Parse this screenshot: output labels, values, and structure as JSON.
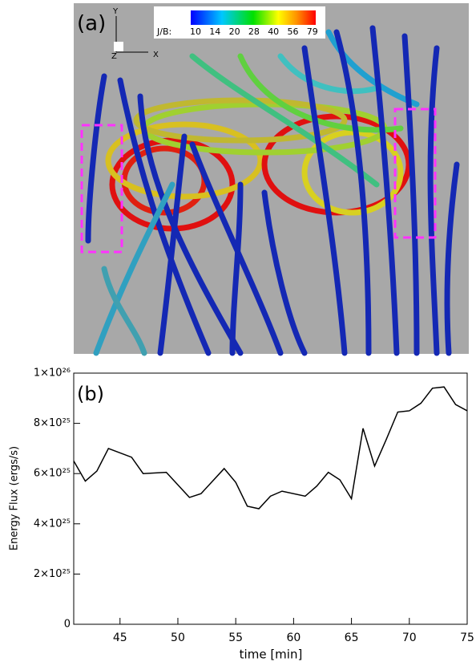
{
  "panel_a": {
    "label": "(a)",
    "colorbar": {
      "title": "J/B:",
      "ticks": [
        10,
        14,
        20,
        28,
        40,
        56,
        79
      ]
    },
    "axes": {
      "y": "Y",
      "z": "Z",
      "x": "X"
    }
  },
  "chart_data": {
    "type": "line",
    "label": "(b)",
    "xlabel": "time [min]",
    "ylabel": "Energy Flux (ergs/s)",
    "x": [
      41,
      42,
      43,
      44,
      46,
      47,
      49,
      51,
      52,
      54,
      55,
      56,
      57,
      58,
      59,
      61,
      62,
      63,
      64,
      65,
      66,
      67,
      68,
      69,
      70,
      71,
      72,
      73,
      74,
      75
    ],
    "values": [
      6.5e+25,
      5.7e+25,
      6.1e+25,
      7e+25,
      6.65e+25,
      6e+25,
      6.05e+25,
      5.05e+25,
      5.2e+25,
      6.2e+25,
      5.65e+25,
      4.7e+25,
      4.6e+25,
      5.1e+25,
      5.3e+25,
      5.1e+25,
      5.5e+25,
      6.05e+25,
      5.75e+25,
      5e+25,
      7.8e+25,
      6.3e+25,
      7.35e+25,
      8.45e+25,
      8.5e+25,
      8.8e+25,
      9.4e+25,
      9.45e+25,
      8.75e+25,
      8.5e+25
    ],
    "color": "#000000",
    "xlim": [
      41,
      75
    ],
    "ylim": [
      0,
      1e+26
    ],
    "xticks": [
      45,
      50,
      55,
      60,
      65,
      70,
      75
    ],
    "yticks": [
      0,
      {
        "value": 2e+25,
        "label": "2×10²⁵"
      },
      {
        "value": 4e+25,
        "label": "4×10²⁵"
      },
      {
        "value": 6e+25,
        "label": "6×10²⁵"
      },
      {
        "value": 8e+25,
        "label": "8×10²⁵"
      },
      {
        "value": 1e+26,
        "label": "1×10²⁶"
      }
    ]
  }
}
